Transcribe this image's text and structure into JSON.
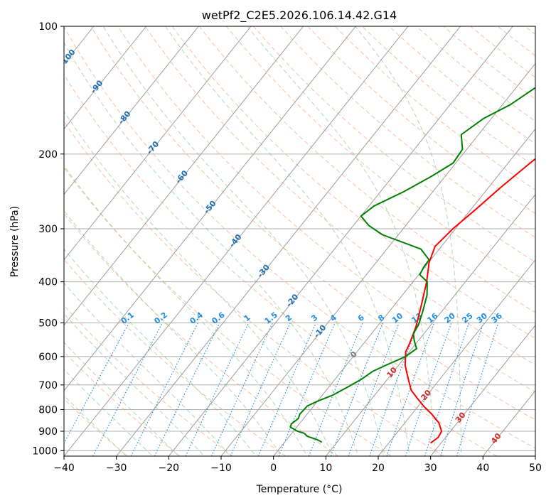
{
  "chart_data": {
    "type": "line",
    "title": "wetPf2_C2E5.2026.106.14.42.G14",
    "xlabel": "Temperature (°C)",
    "ylabel": "Pressure (hPa)",
    "xlim": [
      -40,
      50
    ],
    "ylim": [
      1030,
      100
    ],
    "y_scale": "log",
    "x_ticks": [
      -40,
      -30,
      -20,
      -10,
      0,
      10,
      20,
      30,
      40,
      50
    ],
    "x_tick_labels": [
      "−40",
      "−30",
      "−20",
      "−10",
      "0",
      "10",
      "20",
      "30",
      "40",
      "50"
    ],
    "y_ticks": [
      1000,
      900,
      800,
      700,
      600,
      500,
      400,
      300,
      200,
      100
    ],
    "y_tick_labels": [
      "1000",
      "900",
      "800",
      "700",
      "600",
      "500",
      "400",
      "300",
      "200",
      "100"
    ],
    "grid": true,
    "series": [
      {
        "color": "#ff0000",
        "points": [
          [
            28.0,
            960
          ],
          [
            28.6,
            930
          ],
          [
            28.3,
            900
          ],
          [
            26.5,
            860
          ],
          [
            23.8,
            820
          ],
          [
            21.0,
            785
          ],
          [
            18.8,
            755
          ],
          [
            16.2,
            720
          ],
          [
            13.8,
            675
          ],
          [
            11.3,
            630
          ],
          [
            9.3,
            585
          ],
          [
            8.8,
            560
          ],
          [
            7.4,
            510
          ],
          [
            5.2,
            455
          ],
          [
            2.6,
            400
          ],
          [
            0.1,
            360
          ],
          [
            -1.2,
            330
          ],
          [
            -0.5,
            300
          ],
          [
            0.9,
            270
          ],
          [
            2.3,
            240
          ],
          [
            4.2,
            210
          ],
          [
            6.3,
            185
          ],
          [
            8.5,
            165
          ],
          [
            9.7,
            152
          ],
          [
            12.1,
            138
          ],
          [
            14.3,
            128
          ],
          [
            15.8,
            118
          ],
          [
            17.6,
            110
          ],
          [
            19.7,
            103
          ],
          [
            21.3,
            100
          ]
        ]
      },
      {
        "color": "#008000",
        "points": [
          [
            7.1,
            955
          ],
          [
            5.6,
            940
          ],
          [
            3.4,
            925
          ],
          [
            2.4,
            910
          ],
          [
            0.8,
            900
          ],
          [
            -1.2,
            880
          ],
          [
            -1.5,
            865
          ],
          [
            -1.0,
            840
          ],
          [
            -1.4,
            820
          ],
          [
            -1.2,
            785
          ],
          [
            0.0,
            765
          ],
          [
            2.0,
            740
          ],
          [
            3.5,
            710
          ],
          [
            5.0,
            680
          ],
          [
            6.0,
            650
          ],
          [
            7.5,
            630
          ],
          [
            10.0,
            600
          ],
          [
            10.9,
            575
          ],
          [
            9.2,
            550
          ],
          [
            8.0,
            530
          ],
          [
            7.6,
            505
          ],
          [
            6.4,
            470
          ],
          [
            4.7,
            430
          ],
          [
            2.7,
            400
          ],
          [
            0.2,
            385
          ],
          [
            -0.2,
            370
          ],
          [
            -0.3,
            355
          ],
          [
            -3.5,
            335
          ],
          [
            -13.0,
            310
          ],
          [
            -17.0,
            295
          ],
          [
            -20.0,
            280
          ],
          [
            -19.0,
            265
          ],
          [
            -15.5,
            245
          ],
          [
            -12.5,
            225
          ],
          [
            -10.5,
            210
          ],
          [
            -10.8,
            195
          ],
          [
            -13.3,
            180
          ],
          [
            -11.5,
            165
          ],
          [
            -8.5,
            153
          ],
          [
            -6.4,
            140
          ],
          [
            -3.5,
            127
          ],
          [
            -1.4,
            116
          ],
          [
            -0.8,
            108
          ],
          [
            -0.3,
            100
          ]
        ]
      }
    ],
    "isotherm_labels": [
      "-100",
      "-90",
      "-80",
      "-70",
      "-60",
      "-50",
      "-40",
      "-30",
      "-20",
      "-10",
      "0",
      "10",
      "20",
      "30",
      "40"
    ],
    "mixing_ratio_labels": [
      "0.1",
      "0.2",
      "0.4",
      "0.6",
      "1",
      "1.5",
      "2",
      "3",
      "4",
      "6",
      "8",
      "10",
      "13",
      "16",
      "20",
      "25",
      "30",
      "36"
    ],
    "colors": {
      "temperature": "#ff0000",
      "dewpoint": "#008000",
      "dry_adiabats": "#f4a582",
      "moist_adiabats": "#7fbf7b",
      "mixing_ratio": "#1f8fe5",
      "isotherms": "#999999",
      "isotherm_label_cold": "#1f6fb2",
      "isotherm_label_warm": "#d62728",
      "isotherm_label_zero": "#777777",
      "mixing_ratio_label": "#1f8fe5"
    }
  }
}
